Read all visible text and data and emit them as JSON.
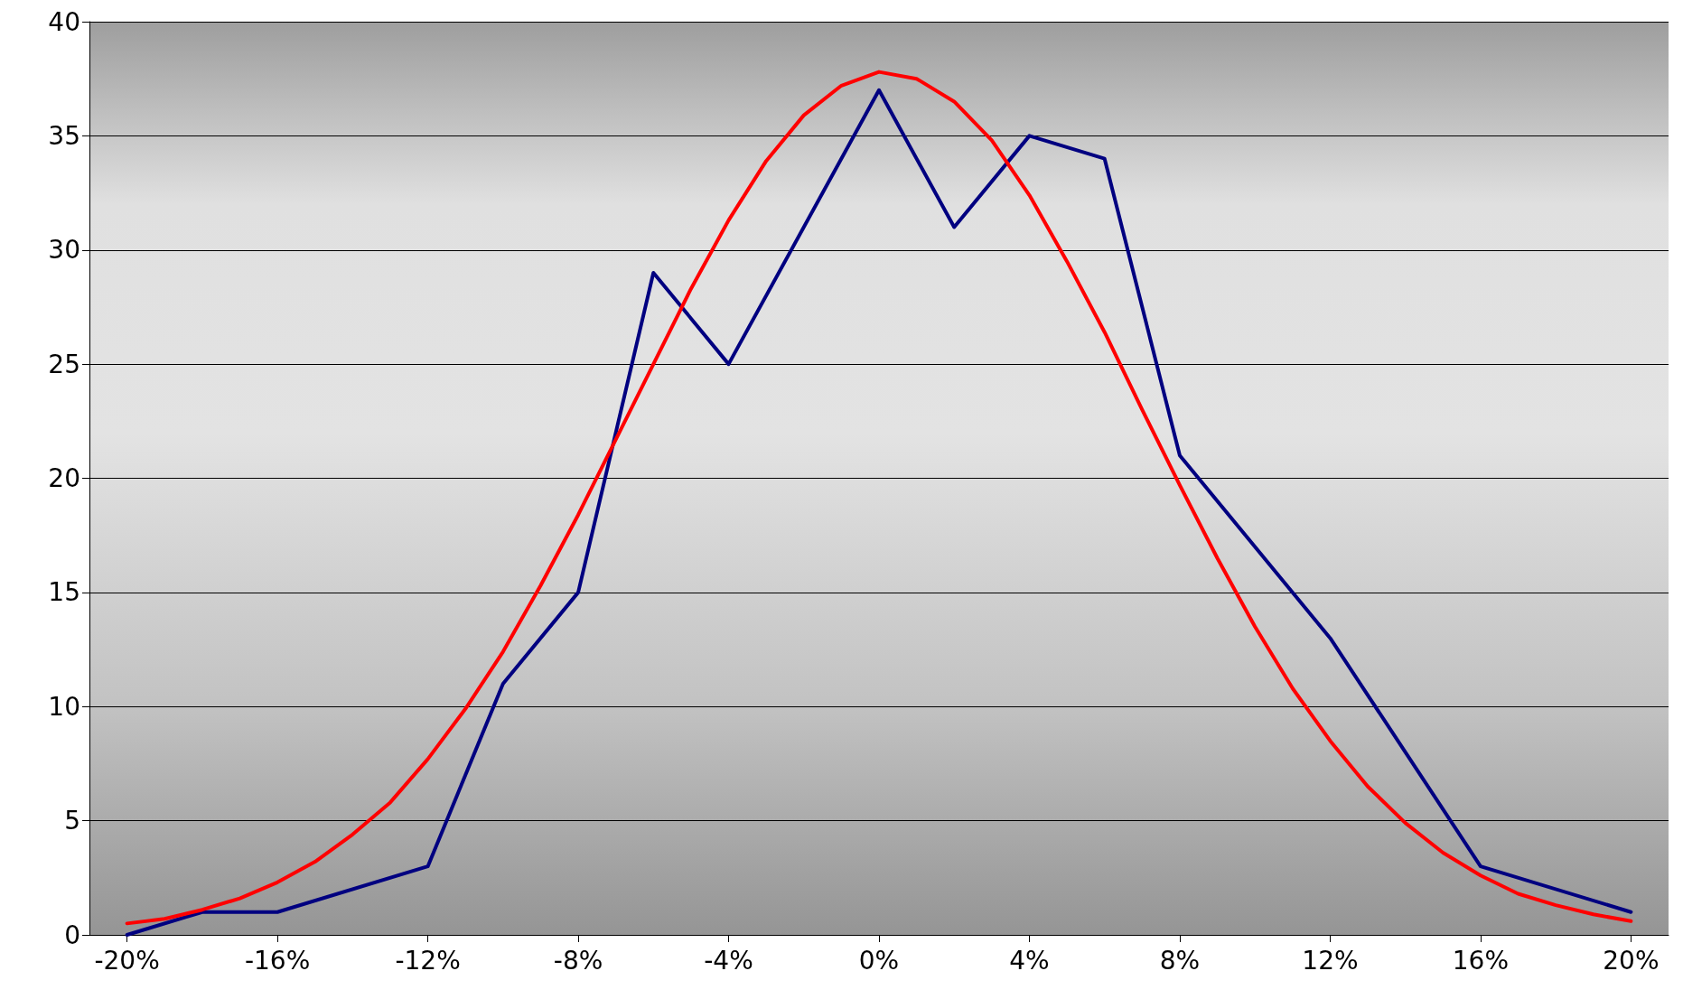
{
  "chart_data": {
    "type": "line",
    "xlim": [
      -21,
      21
    ],
    "ylim": [
      0,
      40
    ],
    "xticks": [
      {
        "value": -20,
        "label": "-20%"
      },
      {
        "value": -16,
        "label": "-16%"
      },
      {
        "value": -12,
        "label": "-12%"
      },
      {
        "value": -8,
        "label": "-8%"
      },
      {
        "value": -4,
        "label": "-4%"
      },
      {
        "value": 0,
        "label": "0%"
      },
      {
        "value": 4,
        "label": "4%"
      },
      {
        "value": 8,
        "label": "8%"
      },
      {
        "value": 12,
        "label": "12%"
      },
      {
        "value": 16,
        "label": "16%"
      },
      {
        "value": 20,
        "label": "20%"
      }
    ],
    "yticks": [
      0,
      5,
      10,
      15,
      20,
      25,
      30,
      35,
      40
    ],
    "grid": "y",
    "marker": "none",
    "line_style": "solid",
    "series": [
      {
        "color": "#000080",
        "x": [
          -20,
          -18,
          -16,
          -12,
          -10,
          -8,
          -6,
          -4,
          0,
          2,
          4,
          6,
          8,
          12,
          16,
          20
        ],
        "values": [
          0,
          1,
          1,
          3,
          11,
          15,
          29,
          25,
          37,
          31,
          35,
          34,
          21,
          13,
          3,
          1
        ]
      },
      {
        "color": "#ff0000",
        "x": [
          -20,
          -19,
          -18,
          -17,
          -16,
          -15,
          -14,
          -13,
          -12,
          -11,
          -10,
          -9,
          -8,
          -7,
          -6,
          -5,
          -4,
          -3,
          -2,
          -1,
          0,
          1,
          2,
          3,
          4,
          5,
          6,
          7,
          8,
          9,
          10,
          11,
          12,
          13,
          14,
          15,
          16,
          17,
          18,
          19,
          20
        ],
        "values": [
          0.5,
          0.7,
          1.1,
          1.6,
          2.3,
          3.2,
          4.4,
          5.8,
          7.7,
          9.9,
          12.4,
          15.3,
          18.4,
          21.7,
          25.0,
          28.3,
          31.3,
          33.9,
          35.9,
          37.2,
          37.8,
          37.5,
          36.5,
          34.8,
          32.4,
          29.5,
          26.4,
          23.0,
          19.7,
          16.5,
          13.5,
          10.8,
          8.5,
          6.5,
          4.9,
          3.6,
          2.6,
          1.8,
          1.3,
          0.9,
          0.6
        ]
      }
    ]
  }
}
